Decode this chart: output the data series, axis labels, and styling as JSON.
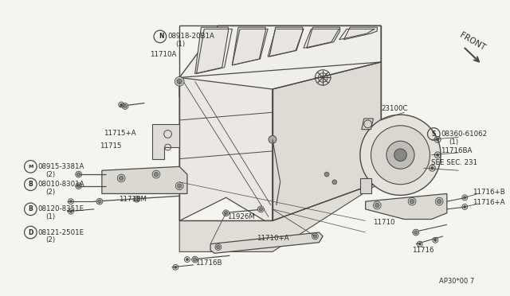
{
  "bg_color": "#f5f5f0",
  "line_color": "#4a4a4a",
  "text_color": "#2a2a2a",
  "fig_width": 6.4,
  "fig_height": 3.72,
  "dpi": 100,
  "labels": {
    "N_bolt": "N❠08918-20B1A\n  (1)",
    "11710A": "11710A",
    "11715pA": "11715+A",
    "11715": "11715",
    "M_bolt": "M❠08915-3381A\n  (2)",
    "B_bolt1": "B❠08010-8301A\n  (2)",
    "B_bolt2": "B❠08120-8351E\n  (1)",
    "D_bolt": "D❠08121-2501E\n  (2)",
    "11718M": "11718M",
    "11926M": "11926M",
    "11710pA": "11710+A",
    "11716B": "11716B",
    "23100C": "23100C",
    "S_bolt": "S❠08360-61062\n  (1)",
    "11716BA": "11716BA",
    "seesec": "SEE SEC. 231",
    "11716pB": "11716+B",
    "11716pA": "11716+A",
    "11710": "11710",
    "11716": "11716",
    "front": "FRONT",
    "partno": "AP30*00 7"
  }
}
